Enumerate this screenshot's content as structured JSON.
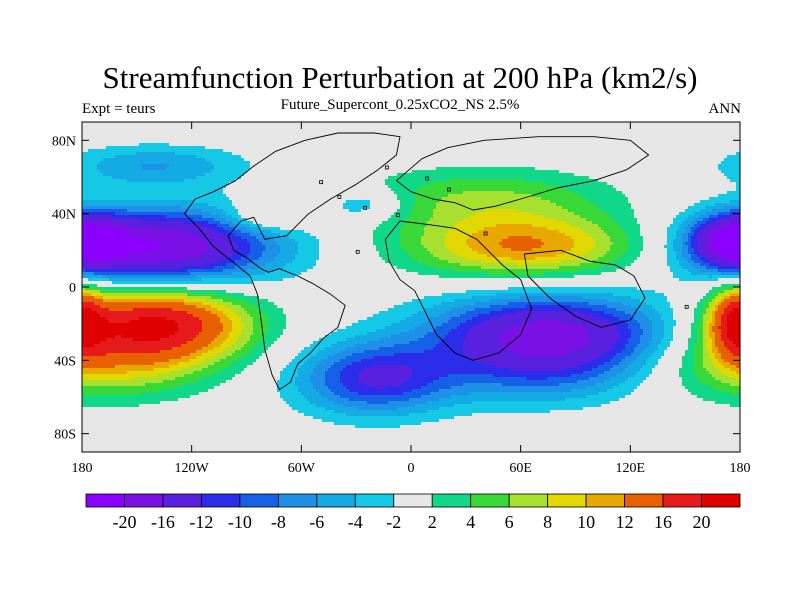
{
  "chart_data": {
    "type": "heatmap",
    "title": "Streamfunction Perturbation at 200 hPa (km2/s)",
    "subtitle_left": "Expt = teurs",
    "subtitle_center": "Future_Supercont_0.25xCO2_NS 2.5%",
    "subtitle_right": "ANN",
    "xlim": [
      -180,
      180
    ],
    "ylim": [
      -90,
      90
    ],
    "x_ticks": [
      {
        "value": -180,
        "label": "180"
      },
      {
        "value": -120,
        "label": "120W"
      },
      {
        "value": -60,
        "label": "60W"
      },
      {
        "value": 0,
        "label": "0"
      },
      {
        "value": 60,
        "label": "60E"
      },
      {
        "value": 120,
        "label": "120E"
      },
      {
        "value": 180,
        "label": "180"
      }
    ],
    "y_ticks": [
      {
        "value": 80,
        "label": "80N"
      },
      {
        "value": 40,
        "label": "40N"
      },
      {
        "value": 0,
        "label": "0"
      },
      {
        "value": -40,
        "label": "40S"
      },
      {
        "value": -80,
        "label": "80S"
      }
    ],
    "contour_levels": [
      -20,
      -16,
      -12,
      -10,
      -8,
      -6,
      -4,
      -2,
      2,
      4,
      6,
      8,
      10,
      12,
      16,
      20
    ],
    "colorbar_labels": [
      "-20",
      "-16",
      "-12",
      "-10",
      "-8",
      "-6",
      "-4",
      "-2",
      "2",
      "4",
      "6",
      "8",
      "10",
      "12",
      "16",
      "20"
    ],
    "colorbar_colors": [
      "#8B00FF",
      "#7A0FE6",
      "#5A20E0",
      "#2C2CEB",
      "#1560E6",
      "#1E90E8",
      "#13AAE6",
      "#14C8E6",
      "#E6E6E6",
      "#10D888",
      "#38D838",
      "#A8E030",
      "#E0D800",
      "#E8A800",
      "#E86000",
      "#E61A1A",
      "#E00000"
    ],
    "features": [
      {
        "lon": -140,
        "lat": 22,
        "value": -20,
        "sx": 45,
        "sy": 14
      },
      {
        "lon": -140,
        "lat": -20,
        "value": 20,
        "sx": 35,
        "sy": 14
      },
      {
        "lon": 75,
        "lat": -26,
        "value": -18,
        "sx": 45,
        "sy": 15
      },
      {
        "lon": 62,
        "lat": 22,
        "value": 12,
        "sx": 45,
        "sy": 12
      },
      {
        "lon": 178,
        "lat": 25,
        "value": -16,
        "sx": 16,
        "sy": 10
      },
      {
        "lon": 178,
        "lat": -18,
        "value": 14,
        "sx": 10,
        "sy": 14
      },
      {
        "lon": -20,
        "lat": -50,
        "value": -12,
        "sx": 30,
        "sy": 14
      },
      {
        "lon": -170,
        "lat": -42,
        "value": 8,
        "sx": 40,
        "sy": 14
      },
      {
        "lon": 70,
        "lat": -50,
        "value": -5,
        "sx": 40,
        "sy": 12
      },
      {
        "lon": -140,
        "lat": 66,
        "value": -6,
        "sx": 35,
        "sy": 8
      },
      {
        "lon": -25,
        "lat": 45,
        "value": -5,
        "sx": 15,
        "sy": 6
      },
      {
        "lon": 40,
        "lat": 48,
        "value": 6,
        "sx": 50,
        "sy": 12
      },
      {
        "lon": -80,
        "lat": 38,
        "value": 5,
        "sx": 15,
        "sy": 6
      }
    ]
  }
}
